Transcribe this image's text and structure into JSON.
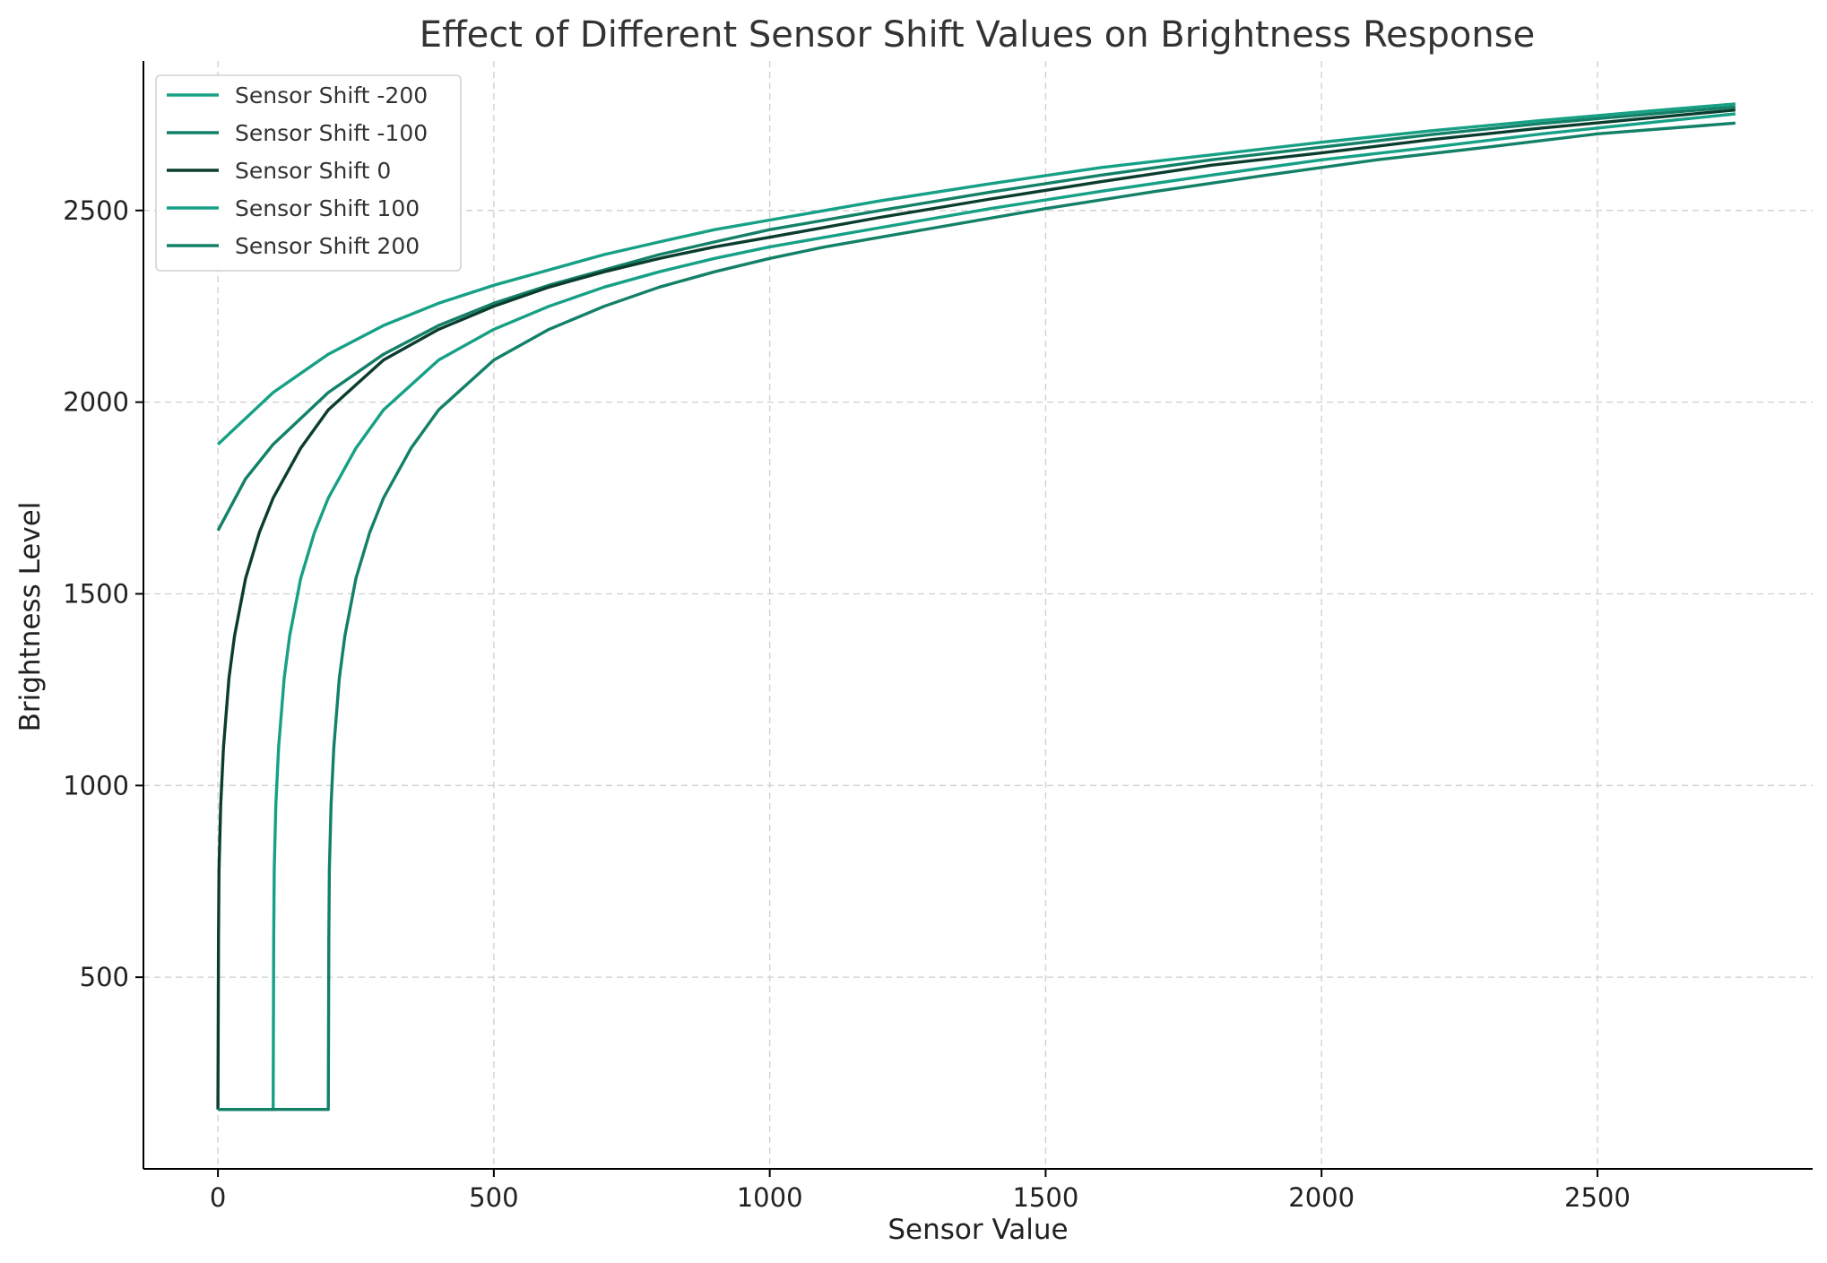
{
  "chart_data": {
    "type": "line",
    "title": "Effect of Different Sensor Shift Values on Brightness Response",
    "xlabel": "Sensor Value",
    "ylabel": "Brightness Level",
    "xlim": [
      -135,
      2890
    ],
    "ylim": [
      0,
      2890
    ],
    "xticks": [
      0,
      500,
      1000,
      1500,
      2000,
      2500
    ],
    "yticks": [
      500,
      1000,
      1500,
      2000,
      2500
    ],
    "grid": true,
    "legend_position": "top-left",
    "series": [
      {
        "name": "Sensor Shift -200",
        "color": "#16a085",
        "x": [
          0,
          100,
          200,
          300,
          400,
          500,
          600,
          700,
          800,
          900,
          1000,
          1200,
          1400,
          1600,
          1800,
          2000,
          2200,
          2400,
          2600,
          2750
        ],
        "y": [
          1890,
          2025,
          2125,
          2200,
          2258,
          2305,
          2345,
          2385,
          2418,
          2450,
          2475,
          2525,
          2570,
          2612,
          2645,
          2678,
          2708,
          2735,
          2760,
          2778
        ]
      },
      {
        "name": "Sensor Shift -100",
        "color": "#138068",
        "x": [
          0,
          50,
          100,
          200,
          300,
          400,
          500,
          600,
          700,
          800,
          900,
          1000,
          1200,
          1400,
          1600,
          1800,
          2000,
          2200,
          2400,
          2600,
          2750
        ],
        "y": [
          1665,
          1800,
          1890,
          2025,
          2125,
          2200,
          2258,
          2305,
          2345,
          2385,
          2418,
          2450,
          2500,
          2548,
          2592,
          2632,
          2665,
          2698,
          2727,
          2752,
          2770
        ]
      },
      {
        "name": "Sensor Shift 0",
        "color": "#0b3d2e",
        "x": [
          0,
          1,
          2,
          5,
          10,
          20,
          30,
          50,
          75,
          100,
          150,
          200,
          300,
          400,
          500,
          600,
          700,
          800,
          900,
          1000,
          1200,
          1400,
          1600,
          1800,
          2000,
          2200,
          2400,
          2600,
          2750
        ],
        "y": [
          155,
          600,
          780,
          950,
          1100,
          1280,
          1390,
          1540,
          1660,
          1750,
          1880,
          1980,
          2110,
          2190,
          2250,
          2300,
          2340,
          2375,
          2405,
          2430,
          2482,
          2530,
          2575,
          2618,
          2650,
          2685,
          2715,
          2742,
          2762
        ]
      },
      {
        "name": "Sensor Shift 100",
        "color": "#16a085",
        "x": [
          0,
          100,
          101,
          102,
          105,
          110,
          120,
          130,
          150,
          175,
          200,
          250,
          300,
          400,
          500,
          600,
          700,
          800,
          900,
          1000,
          1100,
          1200,
          1400,
          1600,
          1800,
          2000,
          2200,
          2400,
          2600,
          2750
        ],
        "y": [
          155,
          155,
          600,
          780,
          950,
          1100,
          1280,
          1390,
          1540,
          1660,
          1750,
          1880,
          1980,
          2110,
          2190,
          2250,
          2300,
          2340,
          2375,
          2405,
          2430,
          2455,
          2505,
          2550,
          2592,
          2632,
          2665,
          2700,
          2730,
          2752
        ]
      },
      {
        "name": "Sensor Shift 200",
        "color": "#138068",
        "x": [
          0,
          200,
          201,
          202,
          205,
          210,
          220,
          230,
          250,
          275,
          300,
          350,
          400,
          500,
          600,
          700,
          800,
          900,
          1000,
          1100,
          1200,
          1300,
          1500,
          1700,
          1900,
          2100,
          2300,
          2500,
          2750
        ],
        "y": [
          155,
          155,
          600,
          780,
          950,
          1100,
          1280,
          1390,
          1540,
          1660,
          1750,
          1880,
          1980,
          2110,
          2190,
          2250,
          2300,
          2340,
          2375,
          2405,
          2430,
          2455,
          2505,
          2550,
          2592,
          2632,
          2665,
          2700,
          2728
        ]
      }
    ]
  }
}
